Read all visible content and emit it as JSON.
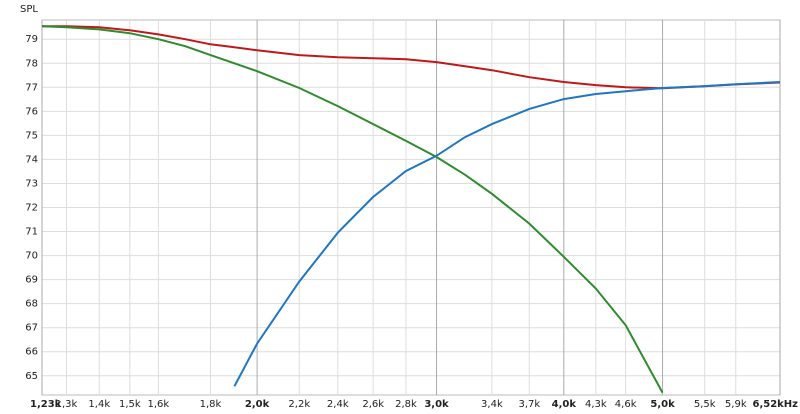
{
  "chart_data": {
    "type": "line",
    "y_label": "SPL",
    "x_scale": "log",
    "grid": true,
    "x": [
      1230,
      1300,
      1400,
      1500,
      1600,
      1700,
      1800,
      1900,
      2000,
      2200,
      2400,
      2600,
      2800,
      3000,
      3200,
      3400,
      3700,
      4000,
      4300,
      4600,
      5000,
      5500,
      5900,
      6520
    ],
    "series": [
      {
        "color": "#c0181a",
        "values": [
          79.54,
          79.54,
          79.5,
          79.37,
          79.2,
          79.0,
          78.79,
          78.67,
          78.54,
          78.34,
          78.25,
          78.21,
          78.17,
          78.05,
          77.88,
          77.71,
          77.42,
          77.22,
          77.09,
          77.0,
          76.96,
          77.04,
          77.12,
          77.2
        ]
      },
      {
        "color": "#2e8b2e",
        "values": [
          79.54,
          79.5,
          79.41,
          79.25,
          79.0,
          78.71,
          78.34,
          78.0,
          77.67,
          76.97,
          76.22,
          75.47,
          74.77,
          74.1,
          73.36,
          72.57,
          71.33,
          69.95,
          68.63,
          67.1,
          64.3,
          null,
          null,
          null
        ]
      },
      {
        "color": "#1f77c4",
        "values": [
          null,
          null,
          null,
          null,
          null,
          null,
          null,
          64.56,
          66.34,
          68.92,
          70.95,
          72.44,
          73.52,
          74.15,
          74.93,
          75.47,
          76.1,
          76.51,
          76.72,
          76.84,
          76.97,
          77.05,
          77.13,
          77.22
        ]
      }
    ],
    "xlim": [
      1230,
      6520
    ],
    "xticks": [
      {
        "value": 1230,
        "label": "1,23k"
      },
      {
        "value": 1300,
        "label": "1,3k"
      },
      {
        "value": 1400,
        "label": "1,4k"
      },
      {
        "value": 1500,
        "label": "1,5k"
      },
      {
        "value": 1600,
        "label": "1,6k"
      },
      {
        "value": 1800,
        "label": "1,8k"
      },
      {
        "value": 2000,
        "label": "2,0k"
      },
      {
        "value": 2200,
        "label": "2,2k"
      },
      {
        "value": 2400,
        "label": "2,4k"
      },
      {
        "value": 2600,
        "label": "2,6k"
      },
      {
        "value": 2800,
        "label": "2,8k"
      },
      {
        "value": 3000,
        "label": "3,0k"
      },
      {
        "value": 3400,
        "label": "3,4k"
      },
      {
        "value": 3700,
        "label": "3,7k"
      },
      {
        "value": 4000,
        "label": "4,0k"
      },
      {
        "value": 4300,
        "label": "4,3k"
      },
      {
        "value": 4600,
        "label": "4,6k"
      },
      {
        "value": 5000,
        "label": "5,0k"
      },
      {
        "value": 5500,
        "label": "5,5k"
      },
      {
        "value": 5900,
        "label": "5,9k"
      },
      {
        "value": 6520,
        "label": "6,52kHz"
      }
    ],
    "ylim": [
      64.2,
      79.8
    ],
    "yticks": [
      65,
      66,
      67,
      68,
      69,
      70,
      71,
      72,
      73,
      74,
      75,
      76,
      77,
      78,
      79
    ]
  }
}
